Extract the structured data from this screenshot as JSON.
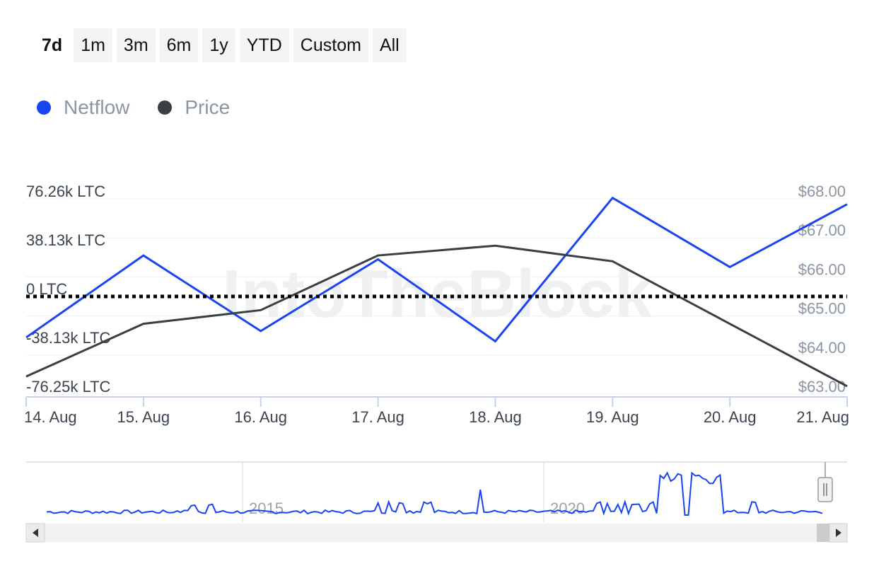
{
  "range_buttons": [
    {
      "label": "7d",
      "selected": true
    },
    {
      "label": "1m"
    },
    {
      "label": "3m"
    },
    {
      "label": "6m"
    },
    {
      "label": "1y"
    },
    {
      "label": "YTD"
    },
    {
      "label": "Custom"
    },
    {
      "label": "All"
    }
  ],
  "legend": [
    {
      "label": "Netflow",
      "color": "#1a44f2"
    },
    {
      "label": "Price",
      "color": "#3b3f45"
    }
  ],
  "watermark": "IntoTheBlock",
  "chart_data": {
    "type": "line",
    "categories": [
      "14. Aug",
      "15. Aug",
      "16. Aug",
      "17. Aug",
      "18. Aug",
      "19. Aug",
      "20. Aug",
      "21. Aug"
    ],
    "left_axis": {
      "ticks": [
        "76.26k LTC",
        "38.13k LTC",
        "0 LTC",
        "-38.13k LTC",
        "-76.25k LTC"
      ],
      "range": [
        -76.25,
        76.26
      ],
      "unit": "k LTC"
    },
    "right_axis": {
      "ticks": [
        "$68.00",
        "$67.00",
        "$66.00",
        "$65.00",
        "$64.00",
        "$63.00"
      ],
      "range": [
        63.0,
        68.0
      ]
    },
    "series": [
      {
        "name": "Netflow",
        "axis": "left",
        "color": "#1a44f2",
        "values": [
          -32,
          32,
          -27,
          29,
          -35,
          77,
          23,
          72
        ]
      },
      {
        "name": "Price",
        "axis": "right",
        "color": "#3b3f45",
        "values": [
          63.45,
          64.8,
          65.15,
          66.55,
          66.8,
          66.4,
          64.8,
          63.2
        ]
      }
    ],
    "zero_line": {
      "value": 0,
      "style": "dotted",
      "color": "#000000"
    },
    "grid": true,
    "navigator": {
      "labels": [
        "2015",
        "2020"
      ],
      "color": "#1a44f2"
    }
  }
}
